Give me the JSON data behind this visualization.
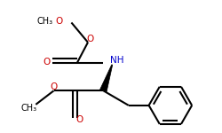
{
  "bg_color": "#ffffff",
  "bond_color": "#000000",
  "oxygen_color": "#cc0000",
  "nitrogen_color": "#0000cc",
  "bond_width": 1.5,
  "figsize": [
    2.5,
    1.5
  ],
  "dpi": 100,
  "xlim": [
    0.0,
    1.0
  ],
  "ylim": [
    0.0,
    1.0
  ]
}
